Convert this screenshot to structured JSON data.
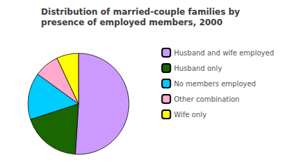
{
  "chart_data": {
    "type": "pie",
    "title": "Distribution of married-couple families by\npresence of employed members, 2000",
    "categories": [
      "Husband and wife employed",
      "Husband only",
      "No members employed",
      "Other combination",
      "Wife only"
    ],
    "values": [
      51,
      19,
      15,
      8,
      7
    ],
    "colors": [
      "#cc99ff",
      "#1a6600",
      "#00ccff",
      "#ffaacc",
      "#ffff00"
    ],
    "legend": "right"
  }
}
